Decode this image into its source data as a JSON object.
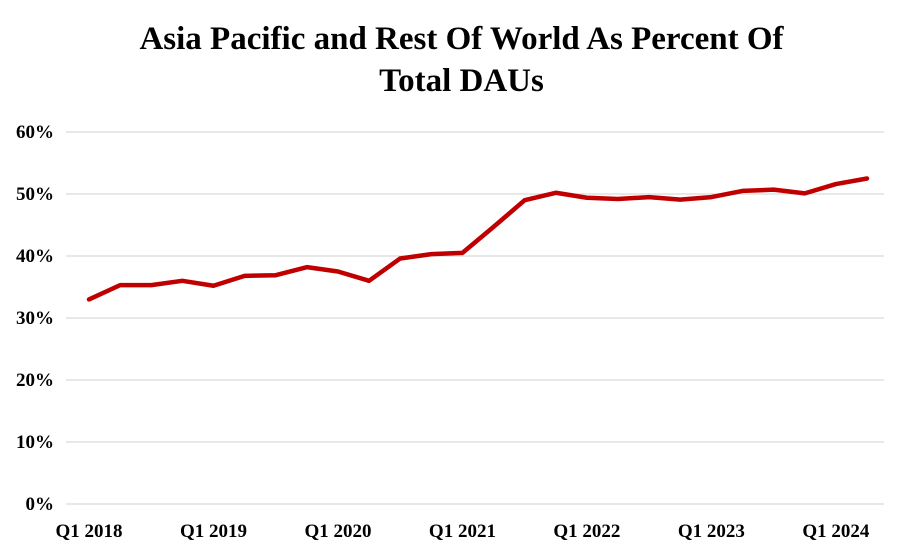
{
  "chart_data": {
    "type": "line",
    "title_line1": "Asia Pacific and Rest Of World As Percent Of",
    "title_line2": "Total DAUs",
    "xlabel": "",
    "ylabel": "",
    "ylim": [
      0,
      60
    ],
    "y_ticks": [
      "0%",
      "10%",
      "20%",
      "30%",
      "40%",
      "50%",
      "60%"
    ],
    "y_tick_values": [
      0,
      10,
      20,
      30,
      40,
      50,
      60
    ],
    "x_tick_labels": [
      "Q1 2018",
      "Q1 2019",
      "Q1 2020",
      "Q1 2021",
      "Q1 2022",
      "Q1 2023",
      "Q1 2024"
    ],
    "x_tick_quarter_index": [
      0,
      4,
      8,
      12,
      16,
      20,
      24
    ],
    "grid": true,
    "legend": "none",
    "categories": [
      "Q1 2018",
      "Q2 2018",
      "Q3 2018",
      "Q4 2018",
      "Q1 2019",
      "Q2 2019",
      "Q3 2019",
      "Q4 2019",
      "Q1 2020",
      "Q2 2020",
      "Q3 2020",
      "Q4 2020",
      "Q1 2021",
      "Q2 2021",
      "Q3 2021",
      "Q4 2021",
      "Q1 2022",
      "Q2 2022",
      "Q3 2022",
      "Q4 2022",
      "Q1 2023",
      "Q2 2023",
      "Q3 2023",
      "Q4 2023",
      "Q1 2024",
      "Q2 2024"
    ],
    "series": [
      {
        "color": "#c00000",
        "values": [
          33.0,
          35.3,
          35.3,
          36.0,
          35.2,
          36.8,
          36.9,
          38.2,
          37.5,
          36.0,
          39.6,
          40.3,
          40.5,
          44.7,
          49.0,
          50.2,
          49.4,
          49.2,
          49.5,
          49.1,
          49.5,
          50.5,
          50.7,
          50.1,
          51.6,
          52.5
        ]
      }
    ]
  }
}
